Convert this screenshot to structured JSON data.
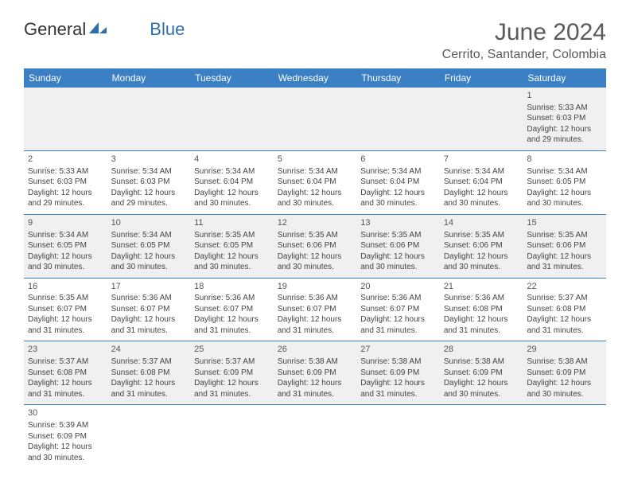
{
  "logo": {
    "word1": "General",
    "word2": "Blue"
  },
  "title": "June 2024",
  "location": "Cerrito, Santander, Colombia",
  "colors": {
    "header_bg": "#3b7fc4",
    "header_text": "#ffffff",
    "row_alt_bg": "#f0f0f0",
    "row_bg": "#ffffff",
    "border": "#3b7fc4",
    "title_color": "#5a5a5a",
    "text_color": "#444444",
    "logo_dark": "#333333",
    "logo_blue": "#2f6fa7"
  },
  "day_headers": [
    "Sunday",
    "Monday",
    "Tuesday",
    "Wednesday",
    "Thursday",
    "Friday",
    "Saturday"
  ],
  "weeks": [
    [
      null,
      null,
      null,
      null,
      null,
      null,
      {
        "n": "1",
        "sunrise": "Sunrise: 5:33 AM",
        "sunset": "Sunset: 6:03 PM",
        "daylight": "Daylight: 12 hours and 29 minutes."
      }
    ],
    [
      {
        "n": "2",
        "sunrise": "Sunrise: 5:33 AM",
        "sunset": "Sunset: 6:03 PM",
        "daylight": "Daylight: 12 hours and 29 minutes."
      },
      {
        "n": "3",
        "sunrise": "Sunrise: 5:34 AM",
        "sunset": "Sunset: 6:03 PM",
        "daylight": "Daylight: 12 hours and 29 minutes."
      },
      {
        "n": "4",
        "sunrise": "Sunrise: 5:34 AM",
        "sunset": "Sunset: 6:04 PM",
        "daylight": "Daylight: 12 hours and 30 minutes."
      },
      {
        "n": "5",
        "sunrise": "Sunrise: 5:34 AM",
        "sunset": "Sunset: 6:04 PM",
        "daylight": "Daylight: 12 hours and 30 minutes."
      },
      {
        "n": "6",
        "sunrise": "Sunrise: 5:34 AM",
        "sunset": "Sunset: 6:04 PM",
        "daylight": "Daylight: 12 hours and 30 minutes."
      },
      {
        "n": "7",
        "sunrise": "Sunrise: 5:34 AM",
        "sunset": "Sunset: 6:04 PM",
        "daylight": "Daylight: 12 hours and 30 minutes."
      },
      {
        "n": "8",
        "sunrise": "Sunrise: 5:34 AM",
        "sunset": "Sunset: 6:05 PM",
        "daylight": "Daylight: 12 hours and 30 minutes."
      }
    ],
    [
      {
        "n": "9",
        "sunrise": "Sunrise: 5:34 AM",
        "sunset": "Sunset: 6:05 PM",
        "daylight": "Daylight: 12 hours and 30 minutes."
      },
      {
        "n": "10",
        "sunrise": "Sunrise: 5:34 AM",
        "sunset": "Sunset: 6:05 PM",
        "daylight": "Daylight: 12 hours and 30 minutes."
      },
      {
        "n": "11",
        "sunrise": "Sunrise: 5:35 AM",
        "sunset": "Sunset: 6:05 PM",
        "daylight": "Daylight: 12 hours and 30 minutes."
      },
      {
        "n": "12",
        "sunrise": "Sunrise: 5:35 AM",
        "sunset": "Sunset: 6:06 PM",
        "daylight": "Daylight: 12 hours and 30 minutes."
      },
      {
        "n": "13",
        "sunrise": "Sunrise: 5:35 AM",
        "sunset": "Sunset: 6:06 PM",
        "daylight": "Daylight: 12 hours and 30 minutes."
      },
      {
        "n": "14",
        "sunrise": "Sunrise: 5:35 AM",
        "sunset": "Sunset: 6:06 PM",
        "daylight": "Daylight: 12 hours and 30 minutes."
      },
      {
        "n": "15",
        "sunrise": "Sunrise: 5:35 AM",
        "sunset": "Sunset: 6:06 PM",
        "daylight": "Daylight: 12 hours and 31 minutes."
      }
    ],
    [
      {
        "n": "16",
        "sunrise": "Sunrise: 5:35 AM",
        "sunset": "Sunset: 6:07 PM",
        "daylight": "Daylight: 12 hours and 31 minutes."
      },
      {
        "n": "17",
        "sunrise": "Sunrise: 5:36 AM",
        "sunset": "Sunset: 6:07 PM",
        "daylight": "Daylight: 12 hours and 31 minutes."
      },
      {
        "n": "18",
        "sunrise": "Sunrise: 5:36 AM",
        "sunset": "Sunset: 6:07 PM",
        "daylight": "Daylight: 12 hours and 31 minutes."
      },
      {
        "n": "19",
        "sunrise": "Sunrise: 5:36 AM",
        "sunset": "Sunset: 6:07 PM",
        "daylight": "Daylight: 12 hours and 31 minutes."
      },
      {
        "n": "20",
        "sunrise": "Sunrise: 5:36 AM",
        "sunset": "Sunset: 6:07 PM",
        "daylight": "Daylight: 12 hours and 31 minutes."
      },
      {
        "n": "21",
        "sunrise": "Sunrise: 5:36 AM",
        "sunset": "Sunset: 6:08 PM",
        "daylight": "Daylight: 12 hours and 31 minutes."
      },
      {
        "n": "22",
        "sunrise": "Sunrise: 5:37 AM",
        "sunset": "Sunset: 6:08 PM",
        "daylight": "Daylight: 12 hours and 31 minutes."
      }
    ],
    [
      {
        "n": "23",
        "sunrise": "Sunrise: 5:37 AM",
        "sunset": "Sunset: 6:08 PM",
        "daylight": "Daylight: 12 hours and 31 minutes."
      },
      {
        "n": "24",
        "sunrise": "Sunrise: 5:37 AM",
        "sunset": "Sunset: 6:08 PM",
        "daylight": "Daylight: 12 hours and 31 minutes."
      },
      {
        "n": "25",
        "sunrise": "Sunrise: 5:37 AM",
        "sunset": "Sunset: 6:09 PM",
        "daylight": "Daylight: 12 hours and 31 minutes."
      },
      {
        "n": "26",
        "sunrise": "Sunrise: 5:38 AM",
        "sunset": "Sunset: 6:09 PM",
        "daylight": "Daylight: 12 hours and 31 minutes."
      },
      {
        "n": "27",
        "sunrise": "Sunrise: 5:38 AM",
        "sunset": "Sunset: 6:09 PM",
        "daylight": "Daylight: 12 hours and 31 minutes."
      },
      {
        "n": "28",
        "sunrise": "Sunrise: 5:38 AM",
        "sunset": "Sunset: 6:09 PM",
        "daylight": "Daylight: 12 hours and 30 minutes."
      },
      {
        "n": "29",
        "sunrise": "Sunrise: 5:38 AM",
        "sunset": "Sunset: 6:09 PM",
        "daylight": "Daylight: 12 hours and 30 minutes."
      }
    ],
    [
      {
        "n": "30",
        "sunrise": "Sunrise: 5:39 AM",
        "sunset": "Sunset: 6:09 PM",
        "daylight": "Daylight: 12 hours and 30 minutes."
      },
      null,
      null,
      null,
      null,
      null,
      null
    ]
  ]
}
